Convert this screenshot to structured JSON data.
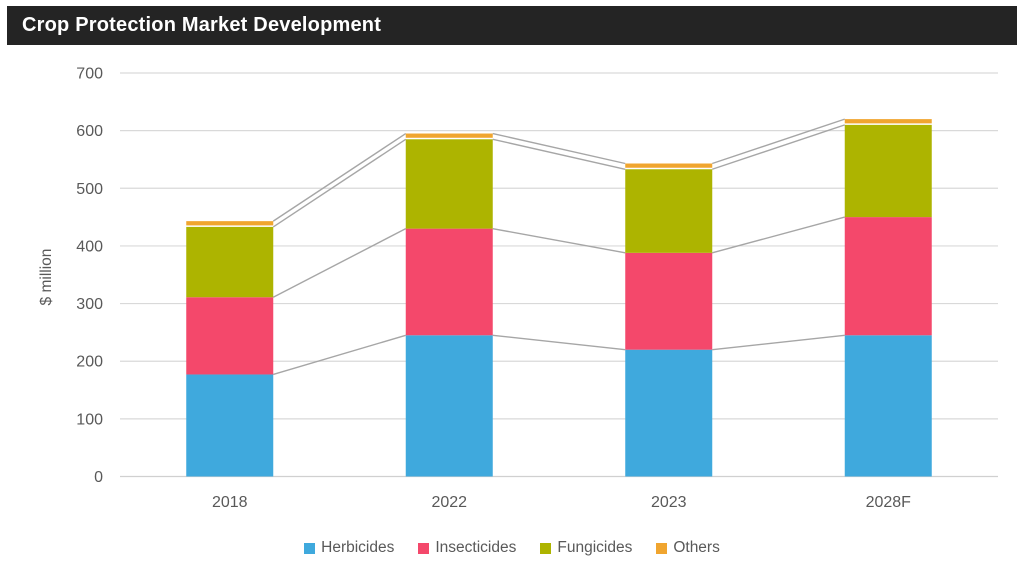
{
  "header": {
    "title": "Crop Protection Market Development",
    "background_color": "#242424",
    "text_color": "#ffffff"
  },
  "chart_data": {
    "type": "bar",
    "stacked": true,
    "title": "Crop Protection Market Development",
    "categories": [
      "2018",
      "2022",
      "2023",
      "2028F"
    ],
    "series": [
      {
        "name": "Herbicides",
        "color": "#3FA9DD",
        "values": [
          177,
          245,
          220,
          245
        ]
      },
      {
        "name": "Insecticides",
        "color": "#F4486B",
        "values": [
          134,
          185,
          168,
          205
        ]
      },
      {
        "name": "Fungicides",
        "color": "#ADB400",
        "values": [
          122,
          155,
          145,
          160
        ]
      },
      {
        "name": "Others",
        "color": "#F0A52F",
        "values": [
          10,
          10,
          10,
          10
        ]
      }
    ],
    "stack_totals": [
      443,
      595,
      543,
      620
    ],
    "xlabel": "",
    "ylabel": "$ million",
    "ylim": [
      0,
      700
    ],
    "ytick_interval": 100,
    "ytick_labels": [
      "0",
      "100",
      "200",
      "300",
      "400",
      "500",
      "600",
      "700"
    ],
    "grid": true,
    "gridline_color": "#D9D9D9",
    "axis_line_color": "#D0D0D0",
    "axis_text_color": "#595959",
    "series_connector_lines": true,
    "connector_color": "#A6A6A6",
    "legend_position": "bottom"
  }
}
